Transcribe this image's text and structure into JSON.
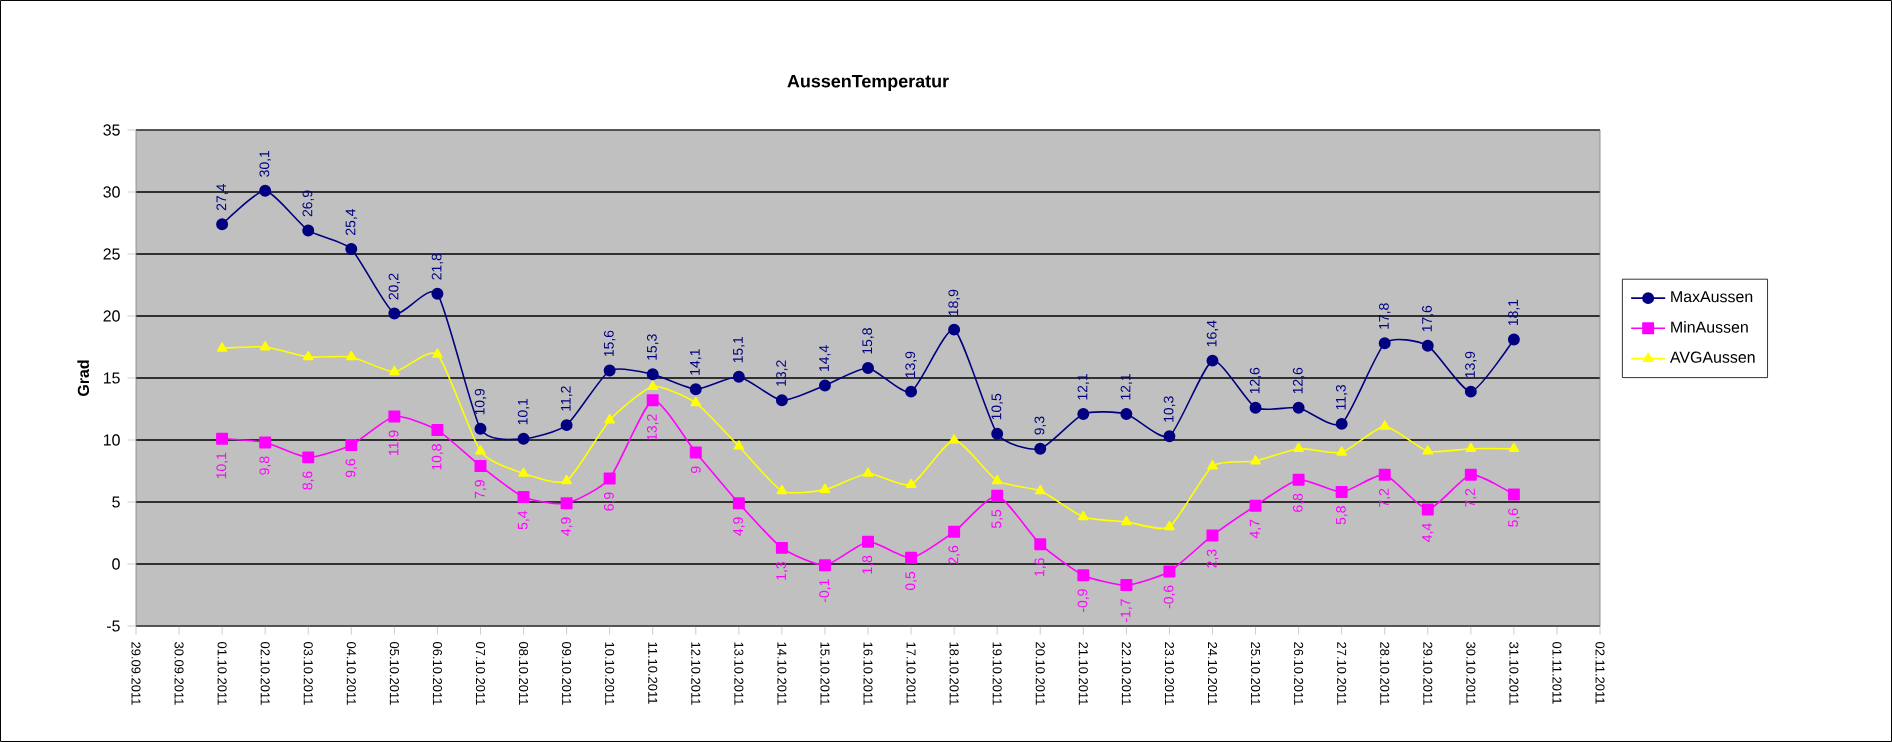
{
  "chart_data": {
    "type": "line",
    "title": "AussenTemperatur",
    "ylabel": "Grad",
    "x": [
      "2011-10-01",
      "2011-10-02",
      "2011-10-03",
      "2011-10-04",
      "2011-10-05",
      "2011-10-06",
      "2011-10-07",
      "2011-10-08",
      "2011-10-09",
      "2011-10-10",
      "2011-10-11",
      "2011-10-12",
      "2011-10-13",
      "2011-10-14",
      "2011-10-15",
      "2011-10-16",
      "2011-10-17",
      "2011-10-18",
      "2011-10-19",
      "2011-10-20",
      "2011-10-21",
      "2011-10-22",
      "2011-10-23",
      "2011-10-24",
      "2011-10-25",
      "2011-10-26",
      "2011-10-27",
      "2011-10-28",
      "2011-10-29",
      "2011-10-30",
      "2011-10-31"
    ],
    "series": [
      {
        "name": "MaxAussen",
        "color": "#000080",
        "marker": "circle",
        "values": [
          27.4,
          30.1,
          26.9,
          25.4,
          20.2,
          21.8,
          10.9,
          10.1,
          11.2,
          15.6,
          15.3,
          14.1,
          15.1,
          13.2,
          14.4,
          15.8,
          13.9,
          18.9,
          10.5,
          9.3,
          12.1,
          12.1,
          10.3,
          16.4,
          12.6,
          12.6,
          11.3,
          17.8,
          17.6,
          13.9,
          18.1
        ],
        "value_labels": [
          "27,4",
          "30,1",
          "26,9",
          "25,4",
          "20,2",
          "21,8",
          "10,9",
          "10,1",
          "11,2",
          "15,6",
          "15,3",
          "14,1",
          "15,1",
          "13,2",
          "14,4",
          "15,8",
          "13,9",
          "18,9",
          "10,5",
          "9,3",
          "12,1",
          "12,1",
          "10,3",
          "16,4",
          "12,6",
          "12,6",
          "11,3",
          "17,8",
          "17,6",
          "13,9",
          "18,1"
        ]
      },
      {
        "name": "MinAussen",
        "color": "#ff00ff",
        "marker": "square",
        "values": [
          10.1,
          9.8,
          8.6,
          9.6,
          11.9,
          10.8,
          7.9,
          5.4,
          4.9,
          6.9,
          13.2,
          9,
          4.9,
          1.3,
          -0.1,
          1.8,
          0.5,
          2.6,
          5.5,
          1.6,
          -0.9,
          -1.7,
          -0.6,
          2.3,
          4.7,
          6.8,
          5.8,
          7.2,
          4.4,
          7.2,
          5.6
        ],
        "value_labels": [
          "10,1",
          "9,8",
          "8,6",
          "9,6",
          "11,9",
          "10,8",
          "7,9",
          "5,4",
          "4,9",
          "6,9",
          "13,2",
          "9",
          "4,9",
          "1,3",
          "-0,1",
          "1,8",
          "0,5",
          "2,6",
          "5,5",
          "1,6",
          "-0,9",
          "-1,7",
          "-0,6",
          "2,3",
          "4,7",
          "6,8",
          "5,8",
          "7,2",
          "4,4",
          "7,2",
          "5,6"
        ]
      },
      {
        "name": "AVGAussen",
        "color": "#ffff00",
        "marker": "triangle",
        "values": [
          17.4,
          17.5,
          16.7,
          16.7,
          15.5,
          16.9,
          9.1,
          7.3,
          6.7,
          11.6,
          14.3,
          13.0,
          9.5,
          5.9,
          6.0,
          7.3,
          6.4,
          10.0,
          6.7,
          5.9,
          3.8,
          3.4,
          3.0,
          7.9,
          8.3,
          9.3,
          9.0,
          11.1,
          9.1,
          9.3,
          9.3
        ]
      }
    ],
    "xlim": [
      "2011-09-29",
      "2011-11-02"
    ],
    "xticks": [
      {
        "value": "2011-09-29",
        "label": "29.09.2011"
      },
      {
        "value": "2011-09-30",
        "label": "30.09.2011"
      },
      {
        "value": "2011-10-01",
        "label": "01.10.2011"
      },
      {
        "value": "2011-10-02",
        "label": "02.10.2011"
      },
      {
        "value": "2011-10-03",
        "label": "03.10.2011"
      },
      {
        "value": "2011-10-04",
        "label": "04.10.2011"
      },
      {
        "value": "2011-10-05",
        "label": "05.10.2011"
      },
      {
        "value": "2011-10-06",
        "label": "06.10.2011"
      },
      {
        "value": "2011-10-07",
        "label": "07.10.2011"
      },
      {
        "value": "2011-10-08",
        "label": "08.10.2011"
      },
      {
        "value": "2011-10-09",
        "label": "09.10.2011"
      },
      {
        "value": "2011-10-10",
        "label": "10.10.2011"
      },
      {
        "value": "2011-10-11",
        "label": "11.10.2011"
      },
      {
        "value": "2011-10-12",
        "label": "12.10.2011"
      },
      {
        "value": "2011-10-13",
        "label": "13.10.2011"
      },
      {
        "value": "2011-10-14",
        "label": "14.10.2011"
      },
      {
        "value": "2011-10-15",
        "label": "15.10.2011"
      },
      {
        "value": "2011-10-16",
        "label": "16.10.2011"
      },
      {
        "value": "2011-10-17",
        "label": "17.10.2011"
      },
      {
        "value": "2011-10-18",
        "label": "18.10.2011"
      },
      {
        "value": "2011-10-19",
        "label": "19.10.2011"
      },
      {
        "value": "2011-10-20",
        "label": "20.10.2011"
      },
      {
        "value": "2011-10-21",
        "label": "21.10.2011"
      },
      {
        "value": "2011-10-22",
        "label": "22.10.2011"
      },
      {
        "value": "2011-10-23",
        "label": "23.10.2011"
      },
      {
        "value": "2011-10-24",
        "label": "24.10.2011"
      },
      {
        "value": "2011-10-25",
        "label": "25.10.2011"
      },
      {
        "value": "2011-10-26",
        "label": "26.10.2011"
      },
      {
        "value": "2011-10-27",
        "label": "27.10.2011"
      },
      {
        "value": "2011-10-28",
        "label": "28.10.2011"
      },
      {
        "value": "2011-10-29",
        "label": "29.10.2011"
      },
      {
        "value": "2011-10-30",
        "label": "30.10.2011"
      },
      {
        "value": "2011-10-31",
        "label": "31.10.2011"
      },
      {
        "value": "2011-11-01",
        "label": "01.11.2011"
      },
      {
        "value": "2011-11-02",
        "label": "02.11.2011"
      }
    ],
    "ylim": [
      -5,
      35
    ],
    "yticks": [
      -5,
      0,
      5,
      10,
      15,
      20,
      25,
      30,
      35
    ],
    "grid": "y",
    "legend": "right",
    "line_style": "solid"
  }
}
